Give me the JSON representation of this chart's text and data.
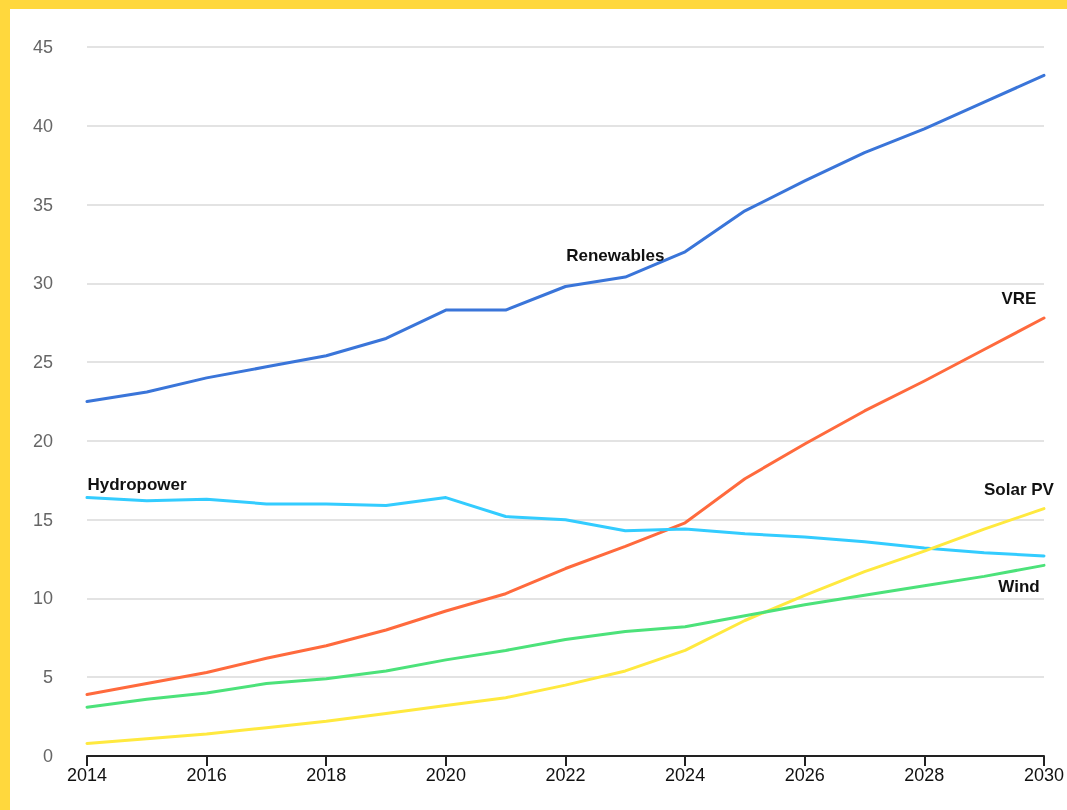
{
  "chart_data": {
    "type": "line",
    "x": [
      2014,
      2015,
      2016,
      2017,
      2018,
      2019,
      2020,
      2021,
      2022,
      2023,
      2024,
      2025,
      2026,
      2027,
      2028,
      2029,
      2030
    ],
    "series": [
      {
        "name": "Renewables",
        "color": "#3a75d9",
        "values": [
          22.5,
          23.1,
          24.0,
          24.7,
          25.4,
          26.5,
          28.3,
          28.3,
          29.8,
          30.4,
          32.0,
          34.6,
          36.5,
          38.3,
          39.8,
          41.5,
          43.2
        ]
      },
      {
        "name": "VRE",
        "color": "#ff6a3d",
        "values": [
          3.9,
          4.6,
          5.3,
          6.2,
          7.0,
          8.0,
          9.2,
          10.3,
          11.9,
          13.3,
          14.8,
          17.6,
          19.8,
          21.9,
          23.8,
          25.8,
          27.8
        ]
      },
      {
        "name": "Hydropower",
        "color": "#33ccff",
        "values": [
          16.4,
          16.2,
          16.3,
          16.0,
          16.0,
          15.9,
          16.4,
          15.2,
          15.0,
          14.3,
          14.4,
          14.1,
          13.9,
          13.6,
          13.2,
          12.9,
          12.7
        ]
      },
      {
        "name": "Solar PV",
        "color": "#ffe93f",
        "values": [
          0.8,
          1.1,
          1.4,
          1.8,
          2.2,
          2.7,
          3.2,
          3.7,
          4.5,
          5.4,
          6.7,
          8.6,
          10.2,
          11.7,
          13.0,
          14.4,
          15.7
        ]
      },
      {
        "name": "Wind",
        "color": "#4ce27a",
        "values": [
          3.1,
          3.6,
          4.0,
          4.6,
          4.9,
          5.4,
          6.1,
          6.7,
          7.4,
          7.9,
          8.2,
          8.9,
          9.6,
          10.2,
          10.8,
          11.4,
          12.1
        ]
      }
    ],
    "xlim": [
      2014,
      2030
    ],
    "xticks": [
      2014,
      2016,
      2018,
      2020,
      2022,
      2024,
      2026,
      2028,
      2030
    ],
    "ylim": [
      0,
      45
    ],
    "yticks": [
      0,
      5,
      10,
      15,
      20,
      25,
      30,
      35,
      40,
      45
    ],
    "grid": "y",
    "legend": false,
    "marker": "none",
    "line_style": "solid"
  }
}
